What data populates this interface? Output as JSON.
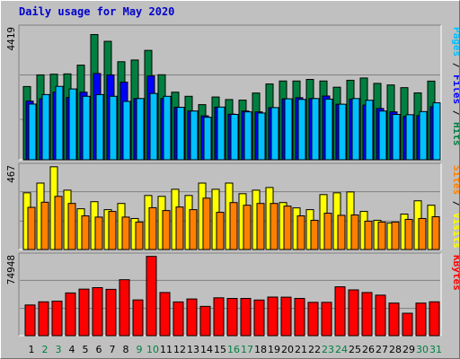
{
  "chart_data": {
    "type": "bar",
    "title": "Daily usage for May 2020",
    "days": [
      "1",
      "2",
      "3",
      "4",
      "5",
      "6",
      "7",
      "8",
      "9",
      "10",
      "11",
      "12",
      "13",
      "14",
      "15",
      "16",
      "17",
      "18",
      "19",
      "20",
      "21",
      "22",
      "23",
      "24",
      "25",
      "26",
      "27",
      "28",
      "29",
      "30",
      "31"
    ],
    "weekend_days": [
      "2",
      "3",
      "9",
      "10",
      "16",
      "17",
      "23",
      "24",
      "30",
      "31"
    ],
    "colors": {
      "hits": "#008040",
      "files": "#0000ff",
      "pages": "#00c0ff",
      "visits": "#ffff00",
      "sites": "#ff8000",
      "kbytes": "#ff0000",
      "day_label": "#000000",
      "weekend_label": "#008040",
      "title": "#0000cc"
    },
    "panels": [
      {
        "id": "hits-files-pages",
        "max_label": "4419",
        "ymax": 4419,
        "right_label": [
          {
            "text": "Pages",
            "color": "#00c0ff"
          },
          {
            "text": " / ",
            "color": "#000000"
          },
          {
            "text": "Files",
            "color": "#0000ff"
          },
          {
            "text": " / ",
            "color": "#000000"
          },
          {
            "text": "Hits",
            "color": "#008040"
          }
        ],
        "series": [
          {
            "name": "Hits",
            "values": [
              2585,
              2995,
              3020,
              3030,
              3340,
              4419,
              4180,
              3460,
              3520,
              3860,
              3000,
              2385,
              2240,
              1945,
              2215,
              2125,
              2105,
              2355,
              2675,
              2780,
              2780,
              2835,
              2780,
              2560,
              2805,
              2885,
              2695,
              2640,
              2545,
              2360,
              2775
            ]
          },
          {
            "name": "Files",
            "values": [
              2070,
              2150,
              2390,
              2200,
              2385,
              3045,
              2995,
              2740,
              2160,
              2960,
              2160,
              1850,
              1720,
              1550,
              1850,
              1610,
              1720,
              1690,
              1840,
              2150,
              2190,
              2160,
              2250,
              1960,
              2140,
              1930,
              1810,
              1690,
              1530,
              1560,
              1870
            ]
          },
          {
            "name": "Pages",
            "values": [
              1965,
              2300,
              2590,
              2500,
              2240,
              2300,
              2240,
              2060,
              2160,
              2340,
              2240,
              1850,
              1720,
              1500,
              1860,
              1600,
              1690,
              1650,
              1840,
              2150,
              2130,
              2160,
              2140,
              1960,
              2160,
              2100,
              1720,
              1600,
              1590,
              1700,
              2010
            ]
          }
        ]
      },
      {
        "id": "visits-sites",
        "max_label": "467",
        "ymax": 467,
        "right_label": [
          {
            "text": "Sites",
            "color": "#ff8000"
          },
          {
            "text": " / ",
            "color": "#000000"
          },
          {
            "text": "Visits",
            "color": "#ffff00"
          }
        ],
        "series": [
          {
            "name": "Visits",
            "values": [
              320,
              375,
              467,
              335,
              230,
              270,
              225,
              260,
              175,
              305,
              300,
              340,
              305,
              375,
              340,
              375,
              315,
              335,
              350,
              265,
              235,
              225,
              310,
              320,
              325,
              215,
              165,
              150,
              200,
              275,
              250
            ]
          },
          {
            "name": "Sites",
            "values": [
              238,
              267,
              300,
              260,
              190,
              183,
              215,
              183,
              155,
              236,
              220,
              240,
              225,
              290,
              210,
              265,
              250,
              260,
              260,
              245,
              190,
              165,
              205,
              193,
              195,
              160,
              155,
              155,
              170,
              175,
              185
            ]
          }
        ]
      },
      {
        "id": "kbytes",
        "max_label": "74948",
        "ymax": 74948,
        "right_label": [
          {
            "text": "KBytes",
            "color": "#ff0000"
          }
        ],
        "series": [
          {
            "name": "KBytes",
            "values": [
              29000,
              32000,
              32600,
              40400,
              44000,
              45400,
              43800,
              52900,
              33800,
              74948,
              40800,
              31900,
              34700,
              27700,
              35800,
              35200,
              35200,
              33700,
              36500,
              36400,
              35200,
              31500,
              31500,
              46200,
              43300,
              40800,
              38300,
              30800,
              21200,
              30800,
              32000
            ]
          }
        ]
      }
    ]
  }
}
